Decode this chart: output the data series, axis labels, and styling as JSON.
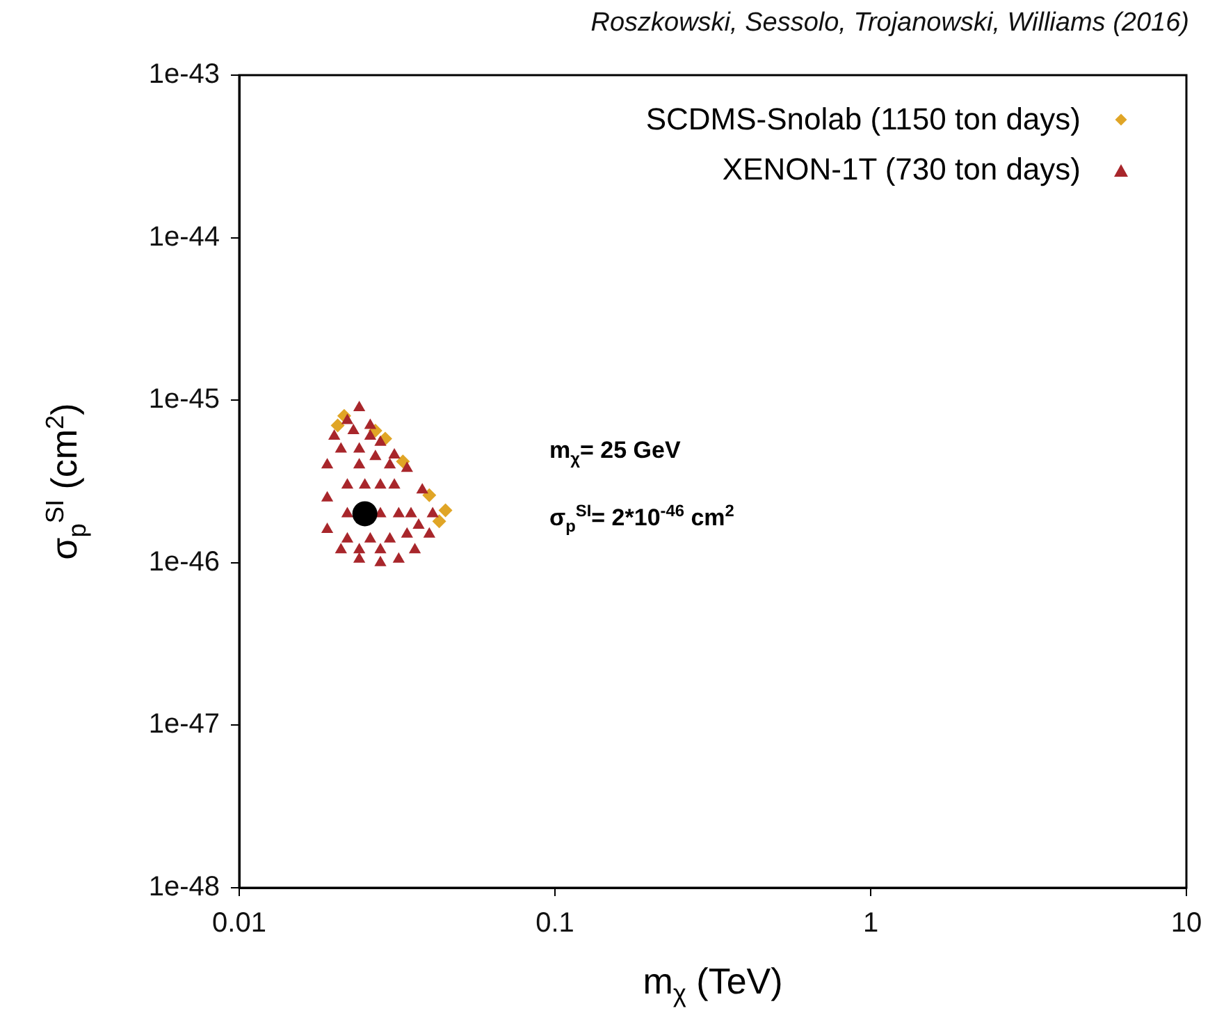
{
  "chart_data": {
    "type": "scatter",
    "title": "Roszkowski, Sessolo, Trojanowski, Williams (2016)",
    "xlabel": "m$_{χ}$ (TeV)",
    "ylabel": "σ$_{p}$$^{SI}$ (cm$^{2}$)",
    "annotations": [
      "m$_{χ}$= 25 GeV",
      "σ$_{p}$$^{SI}$= 2*10$^{-46}$ cm$^{2}$"
    ],
    "log": "xy",
    "xlim": [
      0.01,
      10
    ],
    "xticks": [
      0.01,
      0.1,
      1,
      10
    ],
    "ylim": [
      1e-48,
      1e-43
    ],
    "yticks": [
      {
        "value": 1e-48,
        "label": "1e-48"
      },
      {
        "value": 1e-47,
        "label": "1e-47"
      },
      {
        "value": 1e-46,
        "label": "1e-46"
      },
      {
        "value": 1e-45,
        "label": "1e-45"
      },
      {
        "value": 1e-44,
        "label": "1e-44"
      },
      {
        "value": 1e-43,
        "label": "1e-43"
      }
    ],
    "grid": false,
    "legend": "top right",
    "series": [
      {
        "name": "SCDMS-Snolab (1150 ton days)",
        "color": "#e0a526",
        "marker": "diamond",
        "x": [
          0.0215,
          0.0205,
          0.027,
          0.029,
          0.033,
          0.04,
          0.045,
          0.043
        ],
        "values": [
          8e-46,
          7e-46,
          6.5e-46,
          5.8e-46,
          4.2e-46,
          2.6e-46,
          2.1e-46,
          1.8e-46
        ]
      },
      {
        "name": "XENON-1T (730 ton days)",
        "color": "#a8262b",
        "marker": "triangle",
        "x": [
          0.024,
          0.022,
          0.026,
          0.02,
          0.028,
          0.019,
          0.019,
          0.019,
          0.021,
          0.024,
          0.028,
          0.032,
          0.036,
          0.04,
          0.041,
          0.038,
          0.034,
          0.031,
          0.022,
          0.025,
          0.028,
          0.031,
          0.022,
          0.028,
          0.032,
          0.035,
          0.022,
          0.026,
          0.03,
          0.034,
          0.021,
          0.024,
          0.027,
          0.024,
          0.03,
          0.026,
          0.023,
          0.037,
          0.024,
          0.028
        ],
        "values": [
          9e-46,
          7.5e-46,
          7e-46,
          6e-46,
          5.5e-46,
          4e-46,
          2.5e-46,
          1.6e-46,
          1.2e-46,
          1.05e-46,
          1e-46,
          1.05e-46,
          1.2e-46,
          1.5e-46,
          2e-46,
          2.8e-46,
          3.8e-46,
          4.6e-46,
          3e-46,
          3e-46,
          3e-46,
          3e-46,
          2e-46,
          2e-46,
          2e-46,
          2e-46,
          1.4e-46,
          1.4e-46,
          1.4e-46,
          1.5e-46,
          5e-46,
          5e-46,
          4.5e-46,
          4e-46,
          4e-46,
          6e-46,
          6.5e-46,
          1.7e-46,
          1.2e-46,
          1.2e-46
        ]
      },
      {
        "color": "#000000",
        "marker": "circle",
        "x": [
          0.025
        ],
        "values": [
          2e-46
        ]
      }
    ]
  }
}
